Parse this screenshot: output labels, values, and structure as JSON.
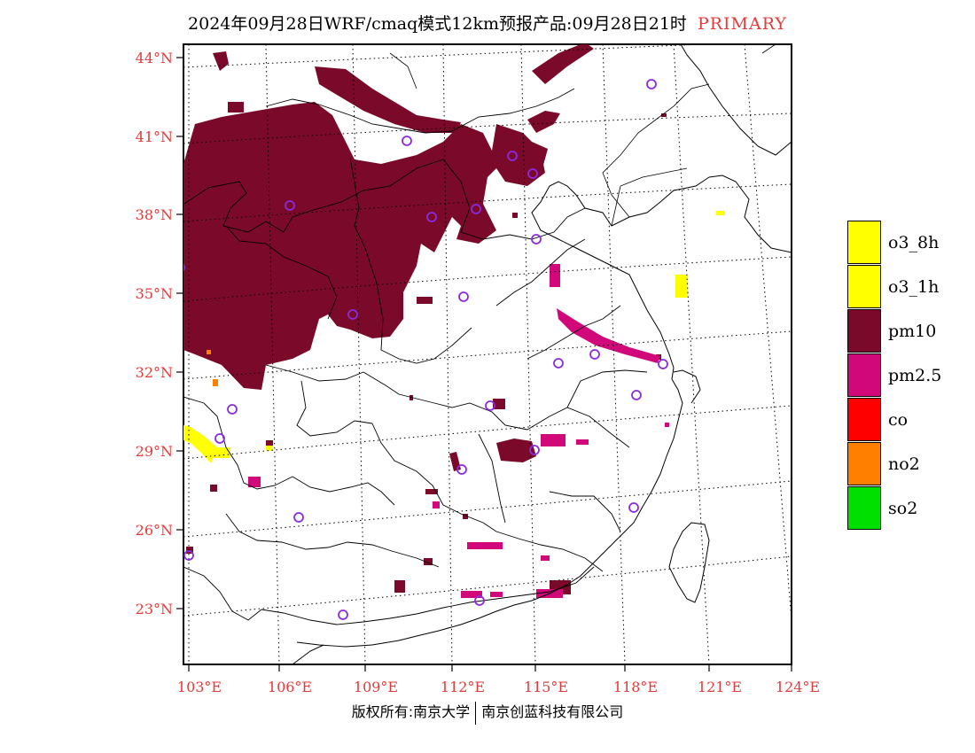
{
  "header": {
    "title": "2024年09月28日WRF/cmaq模式12km预报产品:09月28日21时",
    "tag": "PRIMARY"
  },
  "axes": {
    "lat_labels": [
      "44°N",
      "41°N",
      "38°N",
      "35°N",
      "32°N",
      "29°N",
      "26°N",
      "23°N"
    ],
    "lon_labels": [
      "103°E",
      "106°E",
      "109°E",
      "112°E",
      "115°E",
      "118°E",
      "121°E",
      "124°E"
    ]
  },
  "legend": {
    "items": [
      {
        "label": "o3_8h",
        "color": "#ffff00"
      },
      {
        "label": "o3_1h",
        "color": "#ffff00"
      },
      {
        "label": "pm10",
        "color": "#7b0a2a"
      },
      {
        "label": "pm2.5",
        "color": "#d0087a"
      },
      {
        "label": "co",
        "color": "#ff0000"
      },
      {
        "label": "no2",
        "color": "#ff7f00"
      },
      {
        "label": "so2",
        "color": "#00e000"
      }
    ]
  },
  "footer": {
    "left": "版权所有:南京大学",
    "right": "南京创蓝科技有限公司"
  },
  "colors": {
    "pm10": "#7b0a2a",
    "pm25": "#d0087a",
    "o3": "#ffff00",
    "no2": "#ff7f00",
    "station": "#8a2be2",
    "axis_label": "#e23b3b"
  }
}
